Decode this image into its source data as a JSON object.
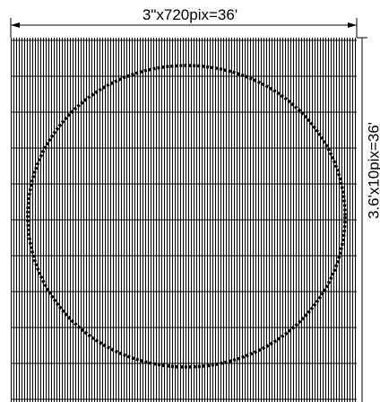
{
  "diagram": {
    "width_label": "3\"x720pix=36'",
    "height_label": "3.6'x10pix=36'"
  }
}
